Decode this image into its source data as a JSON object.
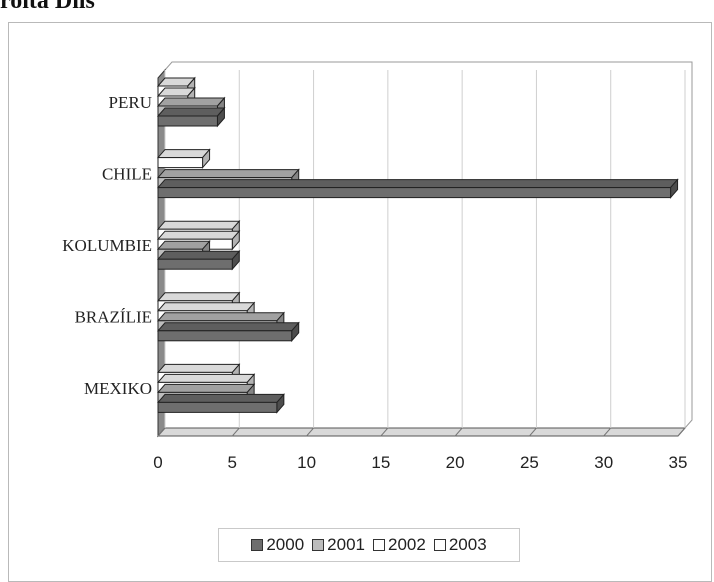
{
  "page": {
    "partial_title": "roita Díls"
  },
  "chart_data": {
    "type": "bar",
    "orientation": "horizontal",
    "categories": [
      "PERU",
      "CHILE",
      "KOLUMBIE",
      "BRAZÍLIE",
      "MEXIKO"
    ],
    "series": [
      {
        "name": "2000",
        "values": [
          4,
          34.5,
          5,
          9,
          8
        ],
        "color": "#6e6e6e"
      },
      {
        "name": "2001",
        "values": [
          4,
          9,
          3,
          8,
          6
        ],
        "color": "#bdbdbd"
      },
      {
        "name": "2002",
        "values": [
          2,
          0,
          5,
          6,
          6
        ],
        "color": "#ffffff"
      },
      {
        "name": "2003",
        "values": [
          2,
          3,
          5,
          5,
          5
        ],
        "color": "#ffffff"
      }
    ],
    "x_ticks": [
      "0",
      "5",
      "10",
      "15",
      "20",
      "25",
      "30",
      "35"
    ],
    "xlim": [
      0,
      35
    ],
    "grid": true,
    "legend_position": "bottom",
    "legend": {
      "items": [
        {
          "label": "2000",
          "color": "#6e6e6e"
        },
        {
          "label": "2001",
          "color": "#bdbdbd"
        },
        {
          "label": "2002",
          "color": "#ffffff"
        },
        {
          "label": "2003",
          "color": "#ffffff"
        }
      ]
    }
  }
}
